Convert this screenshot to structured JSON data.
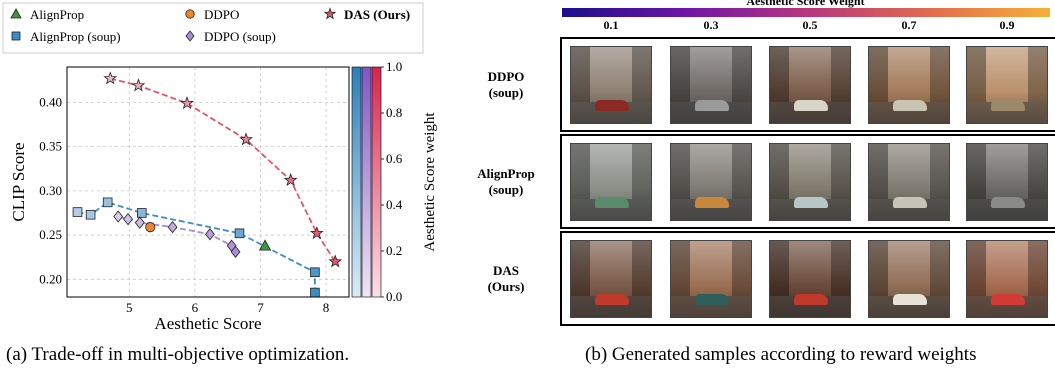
{
  "panel_a": {
    "caption": "(a) Trade-off in multi-objective optimization.",
    "legend": [
      {
        "label": "AlignProp",
        "marker": "triangle",
        "color": "#3a9a3a",
        "bold": false
      },
      {
        "label": "DDPO",
        "marker": "circle",
        "color": "#e8852e",
        "bold": false
      },
      {
        "label": "DAS (Ours)",
        "marker": "star",
        "color": "#e25668",
        "bold": true
      },
      {
        "label": "AlignProp (soup)",
        "marker": "square",
        "color": "#3b8dc4",
        "bold": false
      },
      {
        "label": "DDPO (soup)",
        "marker": "diamond",
        "color": "#a98ad6",
        "bold": false
      }
    ]
  },
  "chart_data": {
    "type": "scatter",
    "xlabel": "Aesthetic Score",
    "ylabel": "CLIP Score",
    "xlim": [
      4.05,
      8.35
    ],
    "ylim": [
      0.18,
      0.44
    ],
    "xticks": [
      "5",
      "6",
      "7",
      "8"
    ],
    "yticks": [
      "0.20",
      "0.25",
      "0.30",
      "0.35",
      "0.40"
    ],
    "grid": true,
    "legend_position": "above",
    "colorbar": {
      "label": "Aesthetic Score weight",
      "ticks": [
        "0.0",
        "0.2",
        "0.4",
        "0.6",
        "0.8",
        "1.0"
      ],
      "range": [
        0,
        1
      ]
    },
    "series": [
      {
        "name": "AlignProp",
        "marker": "triangle",
        "color": "#3a9a3a",
        "x": [
          7.07
        ],
        "y": [
          0.238
        ]
      },
      {
        "name": "DDPO",
        "marker": "circle",
        "color": "#e8852e",
        "x": [
          5.32
        ],
        "y": [
          0.259
        ]
      },
      {
        "name": "DAS (Ours)",
        "marker": "star",
        "color": "#e25668",
        "connected": true,
        "x": [
          4.71,
          5.14,
          5.88,
          6.78,
          7.46,
          7.86,
          8.14
        ],
        "y": [
          0.427,
          0.419,
          0.399,
          0.358,
          0.312,
          0.252,
          0.22
        ],
        "weights": [
          0.0,
          0.1,
          0.3,
          0.5,
          0.7,
          0.9,
          1.0
        ]
      },
      {
        "name": "AlignProp (soup)",
        "marker": "square",
        "color": "#3b8dc4",
        "connected": true,
        "x": [
          4.21,
          4.41,
          4.67,
          5.19,
          6.68,
          7.83,
          7.83
        ],
        "y": [
          0.276,
          0.273,
          0.287,
          0.275,
          0.252,
          0.208,
          0.185
        ],
        "weights": [
          0.0,
          0.1,
          0.2,
          0.35,
          0.6,
          0.85,
          1.0
        ]
      },
      {
        "name": "DDPO (soup)",
        "marker": "diamond",
        "color": "#a98ad6",
        "connected": true,
        "x": [
          4.83,
          4.98,
          5.16,
          5.66,
          6.23,
          6.56,
          6.62
        ],
        "y": [
          0.271,
          0.268,
          0.264,
          0.259,
          0.251,
          0.238,
          0.231
        ],
        "weights": [
          0.0,
          0.15,
          0.3,
          0.5,
          0.7,
          0.85,
          1.0
        ]
      }
    ]
  },
  "panel_b": {
    "caption": "(b) Generated samples according to reward weights",
    "colorbar_title": "Aesthetic Score Weight",
    "weight_ticks": [
      "0.1",
      "0.3",
      "0.5",
      "0.7",
      "0.9"
    ],
    "rows": [
      {
        "label_line1": "DDPO",
        "label_line2": "(soup)",
        "tones": [
          "#8d7f72",
          "#6f6a66",
          "#7b5d4b",
          "#a27a58",
          "#b9906a"
        ],
        "car": [
          "#8b2a22",
          "#9a9a9a",
          "#d9d4c8",
          "#c9c3b3",
          "#9a8a6a"
        ]
      },
      {
        "label_line1": "AlignProp",
        "label_line2": "(soup)",
        "tones": [
          "#8c8f88",
          "#7d7a73",
          "#807a6e",
          "#7f7b72",
          "#6b6a66"
        ],
        "car": [
          "#5a8b6a",
          "#c8873a",
          "#b7c7c8",
          "#c8c4b8",
          "#8a8a86"
        ]
      },
      {
        "label_line1": "DAS",
        "label_line2": "(Ours)",
        "tones": [
          "#7a5a48",
          "#9a6f52",
          "#6a4a3a",
          "#8f6d55",
          "#a56b50"
        ],
        "car": [
          "#c0392b",
          "#2f5f58",
          "#c0392b",
          "#e6e2d8",
          "#d23a36"
        ]
      }
    ]
  }
}
